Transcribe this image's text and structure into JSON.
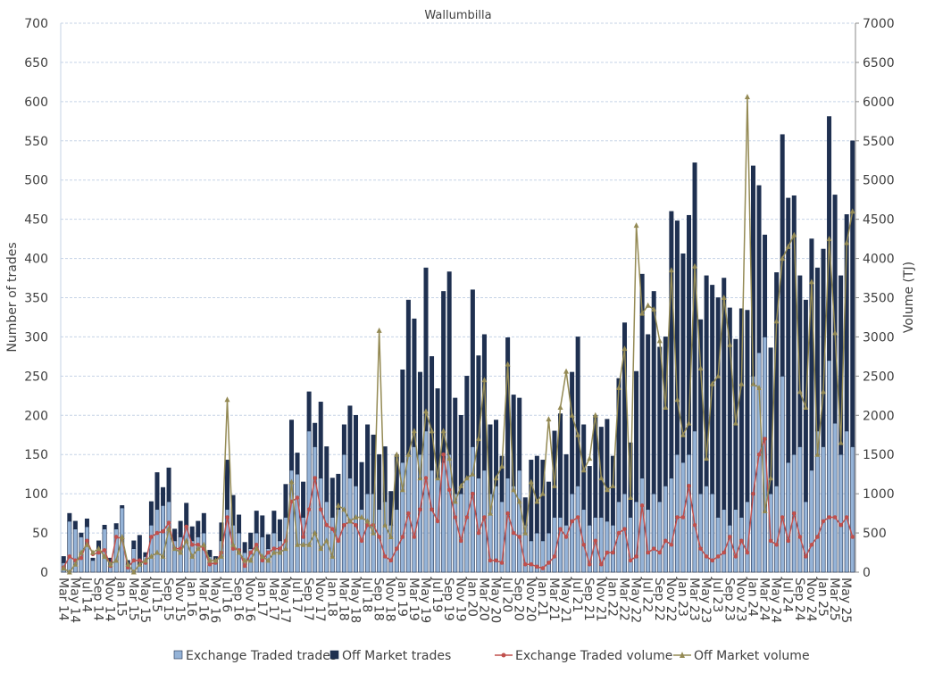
{
  "chart_data": {
    "type": "bar",
    "stacked": true,
    "title": "Wallumbilla",
    "y_label": "Number of trades",
    "y2_label": "Volume (TJ)",
    "categories": [
      "Mar 14",
      null,
      "May 14",
      null,
      "Jul 14",
      null,
      "Sep 14",
      null,
      "Nov 14",
      null,
      "Jan 15",
      null,
      "Mar 15",
      null,
      "May 15",
      null,
      "Jul 15",
      null,
      "Sep 15",
      null,
      "Nov 15",
      null,
      "Jan 16",
      null,
      "Mar 16",
      null,
      "May 16",
      null,
      "Jul 16",
      null,
      "Sep 16",
      null,
      "Nov 16",
      null,
      "Jan 17",
      null,
      "Mar 17",
      null,
      "May 17",
      null,
      "Jul 17",
      null,
      "Sep 17",
      null,
      "Nov 17",
      null,
      "Jan 18",
      null,
      "Mar 18",
      null,
      "May 18",
      null,
      "Jul 18",
      null,
      "Sep 18",
      null,
      "Nov 18",
      null,
      "Jan 19",
      null,
      "Mar 19",
      null,
      "May 19",
      null,
      "Jul 19",
      null,
      "Sep 19",
      null,
      "Nov 19",
      null,
      "Jan 20",
      null,
      "Mar 20",
      null,
      "May 20",
      null,
      "Jul 20",
      null,
      "Sep 20",
      null,
      "Nov 20",
      null,
      "Jan 21",
      null,
      "Mar 21",
      null,
      "May 21",
      null,
      "Jul 21",
      null,
      "Sep 21",
      null,
      "Nov 21",
      null,
      "Jan 22",
      null,
      "Mar 22",
      null,
      "May 22",
      null,
      "Jul 22",
      null,
      "Sep 22",
      null,
      "Nov 22",
      null,
      "Jan 23",
      null,
      "Mar 23",
      null,
      "May 23",
      null,
      "Jul 23",
      null,
      "Sep 23",
      null,
      "Nov 23",
      null,
      "Jan 24",
      null,
      "Mar 24",
      null,
      "May 24",
      null,
      "Jul 24",
      null,
      "Sep 24",
      null,
      "Nov 24",
      null,
      "Jan 25",
      null,
      "Mar 25",
      null,
      "May 25",
      null
    ],
    "series": [
      {
        "name": "Exchange Traded trades",
        "kind": "bar",
        "color": "#95b3d7",
        "values": [
          12,
          65,
          55,
          45,
          58,
          15,
          30,
          55,
          12,
          55,
          82,
          10,
          30,
          10,
          20,
          60,
          80,
          85,
          90,
          40,
          45,
          60,
          40,
          45,
          50,
          20,
          12,
          40,
          80,
          60,
          50,
          25,
          30,
          50,
          45,
          30,
          50,
          40,
          70,
          130,
          125,
          70,
          180,
          160,
          120,
          90,
          70,
          80,
          150,
          120,
          110,
          80,
          100,
          100,
          80,
          90,
          60,
          80,
          140,
          150,
          160,
          150,
          180,
          130,
          120,
          140,
          150,
          100,
          100,
          120,
          160,
          120,
          130,
          100,
          110,
          90,
          120,
          110,
          130,
          60,
          40,
          50,
          40,
          50,
          70,
          70,
          60,
          100,
          110,
          80,
          60,
          70,
          70,
          65,
          60,
          90,
          100,
          70,
          90,
          120,
          80,
          100,
          90,
          110,
          120,
          150,
          140,
          150,
          180,
          100,
          110,
          100,
          70,
          80,
          60,
          80,
          70,
          90,
          250,
          280,
          300,
          100,
          110,
          250,
          140,
          150,
          160,
          90,
          130,
          180,
          160,
          270,
          190,
          150,
          180,
          160
        ]
      },
      {
        "name": "Off Market trades",
        "kind": "bar",
        "color": "#1f3050",
        "values": [
          8,
          10,
          10,
          5,
          10,
          3,
          10,
          5,
          6,
          7,
          3,
          5,
          10,
          37,
          5,
          30,
          47,
          23,
          43,
          15,
          20,
          28,
          18,
          20,
          25,
          8,
          8,
          23,
          63,
          38,
          23,
          13,
          20,
          28,
          27,
          18,
          28,
          27,
          42,
          64,
          27,
          45,
          50,
          30,
          97,
          70,
          50,
          45,
          38,
          92,
          90,
          60,
          88,
          75,
          70,
          70,
          43,
          70,
          118,
          197,
          163,
          105,
          208,
          145,
          114,
          218,
          233,
          122,
          100,
          130,
          200,
          156,
          173,
          88,
          84,
          58,
          179,
          116,
          92,
          35,
          103,
          98,
          103,
          65,
          110,
          132,
          90,
          155,
          190,
          108,
          75,
          130,
          115,
          130,
          88,
          157,
          218,
          95,
          166,
          260,
          223,
          258,
          197,
          190,
          340,
          298,
          266,
          305,
          342,
          222,
          268,
          266,
          280,
          295,
          277,
          217,
          266,
          244,
          268,
          213,
          130,
          186,
          272,
          308,
          337,
          330,
          218,
          257,
          295,
          208,
          252,
          311,
          291,
          228,
          276,
          390
        ]
      },
      {
        "name": "Exchange Traded volume",
        "kind": "line",
        "marker": "circle",
        "axis": "y2",
        "color": "#c0504d",
        "values": [
          60,
          200,
          150,
          180,
          400,
          230,
          250,
          280,
          80,
          450,
          430,
          60,
          150,
          150,
          120,
          450,
          500,
          520,
          630,
          300,
          300,
          580,
          350,
          350,
          300,
          100,
          120,
          250,
          700,
          300,
          280,
          80,
          250,
          350,
          150,
          250,
          300,
          300,
          400,
          900,
          950,
          450,
          800,
          1200,
          800,
          600,
          550,
          400,
          600,
          650,
          600,
          400,
          600,
          600,
          450,
          200,
          150,
          300,
          450,
          750,
          450,
          800,
          1200,
          800,
          650,
          1500,
          1050,
          700,
          400,
          700,
          1000,
          500,
          700,
          150,
          150,
          120,
          750,
          500,
          450,
          100,
          100,
          70,
          50,
          120,
          200,
          550,
          450,
          650,
          700,
          350,
          100,
          400,
          100,
          250,
          250,
          500,
          550,
          150,
          200,
          850,
          250,
          300,
          250,
          400,
          350,
          700,
          700,
          1100,
          600,
          300,
          200,
          150,
          200,
          250,
          450,
          200,
          400,
          250,
          1000,
          1500,
          1700,
          400,
          350,
          700,
          400,
          750,
          450,
          200,
          350,
          450,
          650,
          700,
          700,
          600,
          700,
          450
        ]
      },
      {
        "name": "Off Market volume",
        "kind": "line",
        "marker": "triangle",
        "axis": "y2",
        "color": "#948a54",
        "values": [
          50,
          0,
          100,
          250,
          350,
          250,
          300,
          200,
          100,
          150,
          450,
          100,
          0,
          100,
          150,
          200,
          250,
          200,
          550,
          300,
          250,
          400,
          200,
          300,
          350,
          150,
          150,
          200,
          2200,
          350,
          250,
          150,
          150,
          300,
          200,
          150,
          250,
          250,
          300,
          1150,
          350,
          350,
          350,
          500,
          300,
          400,
          200,
          850,
          800,
          650,
          700,
          700,
          650,
          500,
          3080,
          600,
          450,
          1500,
          1050,
          1500,
          1800,
          1200,
          2050,
          1800,
          1200,
          1800,
          1450,
          900,
          1100,
          1200,
          1250,
          1700,
          2450,
          750,
          1200,
          1350,
          2650,
          1050,
          900,
          500,
          1150,
          900,
          1000,
          1950,
          1100,
          2100,
          2560,
          2000,
          1750,
          1300,
          1450,
          2000,
          1200,
          1050,
          1100,
          2350,
          2850,
          950,
          4420,
          3300,
          3400,
          3350,
          2950,
          2100,
          3850,
          2200,
          1750,
          1900,
          3900,
          2600,
          1450,
          2400,
          2500,
          3500,
          2900,
          1900,
          2400,
          6060,
          2400,
          2350,
          780,
          1200,
          3200,
          4000,
          4150,
          4300,
          2300,
          2100,
          3700,
          1500,
          2300,
          4250,
          3050,
          1650,
          4200,
          4600
        ]
      }
    ],
    "ylim": [
      0,
      700
    ],
    "yticks": [
      0,
      50,
      100,
      150,
      200,
      250,
      300,
      350,
      400,
      450,
      500,
      550,
      600,
      650,
      700
    ],
    "y2lim": [
      0,
      7000
    ],
    "y2ticks": [
      0,
      500,
      1000,
      1500,
      2000,
      2500,
      3000,
      3500,
      4000,
      4500,
      5000,
      5500,
      6000,
      6500,
      7000
    ],
    "grid": true,
    "legend": "bottom"
  }
}
